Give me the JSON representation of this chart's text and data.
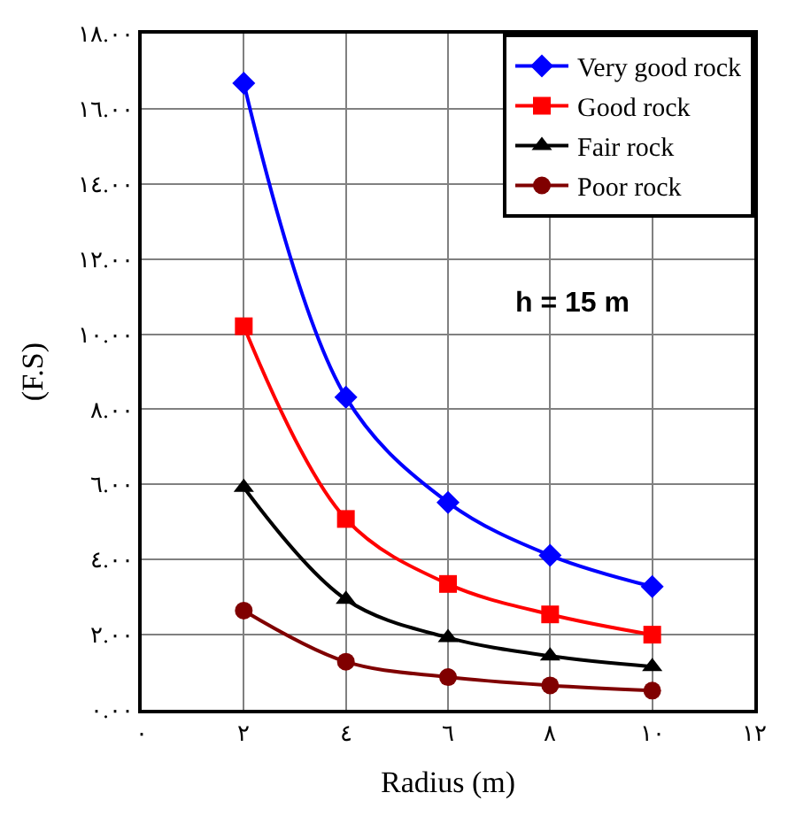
{
  "chart_data": {
    "type": "line",
    "xlabel": "Radius (m)",
    "ylabel": "(F.S)",
    "x": [
      2,
      4,
      6,
      8,
      10
    ],
    "series": [
      {
        "name": "Very good rock",
        "color": "#0000ff",
        "marker": "diamond",
        "values": [
          16.68,
          8.32,
          5.52,
          4.11,
          3.28
        ]
      },
      {
        "name": "Good rock",
        "color": "#ff0000",
        "marker": "square",
        "values": [
          10.21,
          5.08,
          3.35,
          2.54,
          2.0
        ]
      },
      {
        "name": "Fair rock",
        "color": "#000000",
        "marker": "triangle",
        "values": [
          5.92,
          2.94,
          1.92,
          1.43,
          1.15
        ]
      },
      {
        "name": "Poor rock",
        "color": "#800000",
        "marker": "circle",
        "values": [
          2.64,
          1.28,
          0.87,
          0.65,
          0.51
        ]
      }
    ],
    "annotations": [
      "h = 15 m"
    ],
    "xlim": [
      0,
      12
    ],
    "xticks": [
      {
        "value": 0,
        "label": "٠"
      },
      {
        "value": 2,
        "label": "٢"
      },
      {
        "value": 4,
        "label": "٤"
      },
      {
        "value": 6,
        "label": "٦"
      },
      {
        "value": 8,
        "label": "٨"
      },
      {
        "value": 10,
        "label": "١٠"
      },
      {
        "value": 12,
        "label": "١٢"
      }
    ],
    "ylim": [
      0,
      18
    ],
    "yticks": [
      {
        "value": 0,
        "label": "٠.٠٠"
      },
      {
        "value": 2,
        "label": "٢.٠٠"
      },
      {
        "value": 4,
        "label": "٤.٠٠"
      },
      {
        "value": 6,
        "label": "٦.٠٠"
      },
      {
        "value": 8,
        "label": "٨.٠٠"
      },
      {
        "value": 10,
        "label": "١٠.٠٠"
      },
      {
        "value": 12,
        "label": "١٢.٠٠"
      },
      {
        "value": 14,
        "label": "١٤.٠٠"
      },
      {
        "value": 16,
        "label": "١٦.٠٠"
      },
      {
        "value": 18,
        "label": "١٨.٠٠"
      }
    ],
    "grid": true,
    "legend": "top right",
    "line_style": "solid"
  }
}
